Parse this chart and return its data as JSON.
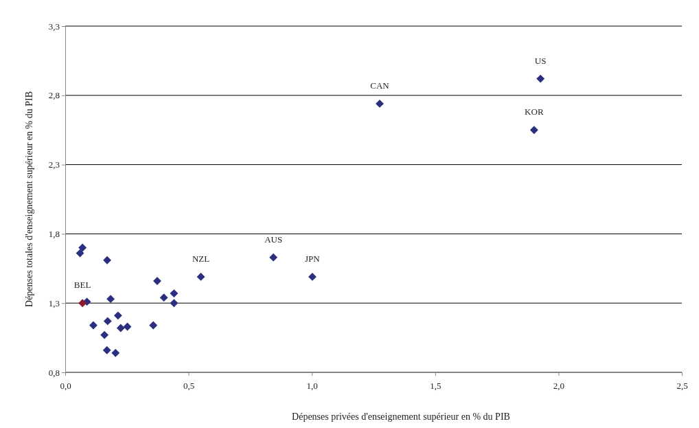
{
  "chart_data": {
    "type": "scatter",
    "xlabel": "Dépenses privées d'enseignement supérieur en % du PIB",
    "ylabel": "Dépenses totales d'enseignement supérieur en % du PIB",
    "x": [
      0.07,
      0.06,
      0.17,
      0.373,
      0.55,
      0.4,
      0.441,
      0.441,
      0.184,
      0.088,
      0.07,
      0.214,
      0.172,
      0.114,
      0.225,
      0.252,
      0.357,
      0.159,
      0.169,
      0.204,
      0.844,
      1.002,
      1.275,
      1.927,
      1.901
    ],
    "values": [
      1.7,
      1.66,
      1.61,
      1.46,
      1.49,
      1.34,
      1.37,
      1.3,
      1.33,
      1.31,
      1.3,
      1.21,
      1.17,
      1.14,
      1.12,
      1.13,
      1.14,
      1.07,
      0.96,
      0.94,
      1.63,
      1.49,
      2.74,
      2.92,
      2.55
    ],
    "colors": [
      "#2b2f7f",
      "#2b2f7f",
      "#2b2f7f",
      "#2b2f7f",
      "#2b2f7f",
      "#2b2f7f",
      "#2b2f7f",
      "#2b2f7f",
      "#2b2f7f",
      "#2b2f7f",
      "#8b1a2a",
      "#2b2f7f",
      "#2b2f7f",
      "#2b2f7f",
      "#2b2f7f",
      "#2b2f7f",
      "#2b2f7f",
      "#2b2f7f",
      "#2b2f7f",
      "#2b2f7f",
      "#2b2f7f",
      "#2b2f7f",
      "#2b2f7f",
      "#2b2f7f",
      "#2b2f7f"
    ],
    "marker": "diamond",
    "grid": "y",
    "xlim": [
      0,
      2.5
    ],
    "xticks": [
      {
        "value": 0,
        "label": "0,0"
      },
      {
        "value": 0.5,
        "label": "0,5"
      },
      {
        "value": 1,
        "label": "1,0"
      },
      {
        "value": 1.5,
        "label": "1,5"
      },
      {
        "value": 2,
        "label": "2,0"
      },
      {
        "value": 2.5,
        "label": "2,5"
      }
    ],
    "ylim": [
      0.8,
      3.3
    ],
    "yticks": [
      {
        "value": 0.8,
        "label": "0,8"
      },
      {
        "value": 1.3,
        "label": "1,3"
      },
      {
        "value": 1.8,
        "label": "1,8"
      },
      {
        "value": 2.3,
        "label": "2,3"
      },
      {
        "value": 2.8,
        "label": "2,8"
      },
      {
        "value": 3.3,
        "label": "3,3"
      }
    ],
    "annotations": [
      {
        "text": "US",
        "x": 1.927,
        "y": 2.92
      },
      {
        "text": "CAN",
        "x": 1.275,
        "y": 2.74
      },
      {
        "text": "KOR",
        "x": 1.901,
        "y": 2.55
      },
      {
        "text": "AUS",
        "x": 0.844,
        "y": 1.63
      },
      {
        "text": "JPN",
        "x": 1.002,
        "y": 1.49
      },
      {
        "text": "NZL",
        "x": 0.55,
        "y": 1.49
      },
      {
        "text": "BEL",
        "x": 0.07,
        "y": 1.3
      }
    ]
  }
}
